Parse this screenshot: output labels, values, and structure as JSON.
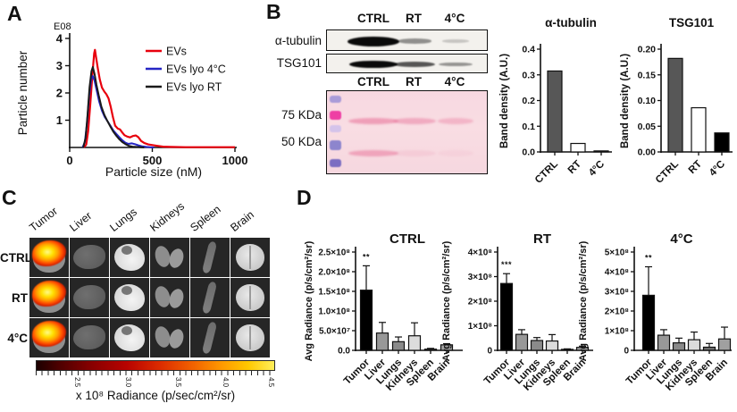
{
  "figure": {
    "panel_a": {
      "label": "A",
      "exponent": "E08",
      "xlabel": "Particle size (nM)",
      "ylabel": "Particle number",
      "legend": [
        {
          "label": "EVs",
          "color": "#e8000d"
        },
        {
          "label": "EVs lyo 4°C",
          "color": "#2525c4"
        },
        {
          "label": "EVs lyo RT",
          "color": "#1a1a1a"
        }
      ]
    },
    "panel_b": {
      "label": "B",
      "lanes": [
        "CTRL",
        "RT",
        "4°C"
      ],
      "blot_rows": [
        {
          "label": "α-tubulin",
          "band_intensities": [
            1.0,
            0.3,
            0.07
          ]
        },
        {
          "label": "TSG101",
          "band_intensities": [
            0.95,
            0.55,
            0.28
          ]
        }
      ],
      "ponceau": {
        "lanes": [
          "CTRL",
          "RT",
          "4°C"
        ],
        "markers": [
          "75 KDa",
          "50 KDa"
        ],
        "smear_rows": [
          {
            "marker": "75 KDa",
            "intensities": [
              0.55,
              0.45,
              0.35
            ]
          },
          {
            "marker": "50 KDa",
            "intensities": [
              0.5,
              0.12,
              0.08
            ]
          }
        ]
      }
    },
    "panel_c": {
      "label": "C",
      "columns": [
        "Tumor",
        "Liver",
        "Lungs",
        "Kidneys",
        "Spleen",
        "Brain"
      ],
      "rows": [
        "CTRL",
        "RT",
        "4°C"
      ],
      "colorbar": {
        "ticks": [
          "2.5",
          "3.0",
          "3.5",
          "4.0",
          "4.5"
        ],
        "label": "x 10⁸ Radiance (p/sec/cm²/sr)"
      }
    },
    "panel_d": {
      "label": "D"
    }
  },
  "chart_data": [
    {
      "panel": "A",
      "type": "line",
      "title": "",
      "xlabel": "Particle size (nM)",
      "ylabel": "Particle number",
      "y_exponent": "E08",
      "xlim": [
        0,
        1000
      ],
      "ylim": [
        0,
        4
      ],
      "xticks": {
        "values": [
          0,
          500,
          1000
        ],
        "labels": [
          "0",
          "500",
          "1000"
        ]
      },
      "yticks": {
        "values": [
          1,
          2,
          3,
          4
        ],
        "labels": [
          "1",
          "2",
          "3",
          "4"
        ]
      },
      "legend_position": "top-right",
      "series": [
        {
          "name": "EVs",
          "color": "#e8000d",
          "points": [
            [
              85,
              0
            ],
            [
              100,
              0.1
            ],
            [
              112,
              0.6
            ],
            [
              125,
              1.6
            ],
            [
              138,
              2.7
            ],
            [
              148,
              3.45
            ],
            [
              153,
              3.58
            ],
            [
              160,
              3.3
            ],
            [
              170,
              2.9
            ],
            [
              182,
              2.5
            ],
            [
              195,
              2.2
            ],
            [
              210,
              2.05
            ],
            [
              222,
              1.95
            ],
            [
              235,
              1.8
            ],
            [
              248,
              1.5
            ],
            [
              262,
              1.1
            ],
            [
              275,
              0.8
            ],
            [
              290,
              0.7
            ],
            [
              305,
              0.66
            ],
            [
              318,
              0.55
            ],
            [
              332,
              0.45
            ],
            [
              348,
              0.4
            ],
            [
              365,
              0.37
            ],
            [
              382,
              0.42
            ],
            [
              400,
              0.44
            ],
            [
              415,
              0.38
            ],
            [
              432,
              0.24
            ],
            [
              452,
              0.16
            ],
            [
              475,
              0.11
            ],
            [
              500,
              0.09
            ],
            [
              530,
              0.06
            ],
            [
              565,
              0.03
            ],
            [
              610,
              0.02
            ],
            [
              700,
              0.01
            ],
            [
              850,
              0.01
            ],
            [
              1000,
              0.01
            ]
          ]
        },
        {
          "name": "EVs lyo 4°C",
          "color": "#2525c4",
          "points": [
            [
              78,
              0
            ],
            [
              92,
              0.2
            ],
            [
              105,
              0.9
            ],
            [
              118,
              1.9
            ],
            [
              130,
              2.5
            ],
            [
              140,
              2.62
            ],
            [
              150,
              2.45
            ],
            [
              163,
              2.1
            ],
            [
              178,
              1.7
            ],
            [
              195,
              1.35
            ],
            [
              212,
              1.12
            ],
            [
              230,
              0.95
            ],
            [
              248,
              0.78
            ],
            [
              265,
              0.62
            ],
            [
              282,
              0.5
            ],
            [
              300,
              0.38
            ],
            [
              318,
              0.27
            ],
            [
              336,
              0.18
            ],
            [
              355,
              0.13
            ],
            [
              375,
              0.15
            ],
            [
              395,
              0.12
            ],
            [
              415,
              0.08
            ],
            [
              440,
              0.04
            ],
            [
              465,
              0.02
            ],
            [
              490,
              0.01
            ],
            [
              510,
              0
            ]
          ]
        },
        {
          "name": "EVs lyo RT",
          "color": "#1a1a1a",
          "points": [
            [
              82,
              0
            ],
            [
              96,
              0.35
            ],
            [
              108,
              1.2
            ],
            [
              120,
              2.2
            ],
            [
              132,
              2.8
            ],
            [
              140,
              2.95
            ],
            [
              150,
              2.7
            ],
            [
              162,
              2.3
            ],
            [
              176,
              1.9
            ],
            [
              192,
              1.5
            ],
            [
              210,
              1.2
            ],
            [
              228,
              0.97
            ],
            [
              246,
              0.77
            ],
            [
              264,
              0.58
            ],
            [
              282,
              0.43
            ],
            [
              300,
              0.3
            ],
            [
              318,
              0.2
            ],
            [
              338,
              0.12
            ],
            [
              358,
              0.06
            ],
            [
              380,
              0.03
            ],
            [
              405,
              0.02
            ],
            [
              430,
              0.01
            ],
            [
              450,
              0
            ]
          ]
        }
      ]
    },
    {
      "panel": "B",
      "type": "bar",
      "title": "α-tubulin",
      "ylabel": "Band density (A.U.)",
      "categories": [
        "CTRL",
        "RT",
        "4°C"
      ],
      "values": [
        0.315,
        0.033,
        0.004
      ],
      "colors": [
        "#575757",
        "#ffffff",
        "#000000"
      ],
      "ylim": [
        0,
        0.4
      ],
      "yticks": {
        "values": [
          0,
          0.1,
          0.2,
          0.3,
          0.4
        ],
        "labels": [
          "0.0",
          "0.1",
          "0.2",
          "0.3",
          "0.4"
        ]
      }
    },
    {
      "panel": "B",
      "type": "bar",
      "title": "TSG101",
      "ylabel": "Band density (A.U.)",
      "categories": [
        "CTRL",
        "RT",
        "4°C"
      ],
      "values": [
        0.182,
        0.086,
        0.037
      ],
      "colors": [
        "#575757",
        "#ffffff",
        "#000000"
      ],
      "ylim": [
        0,
        0.2
      ],
      "yticks": {
        "values": [
          0,
          0.05,
          0.1,
          0.15,
          0.2
        ],
        "labels": [
          "0.00",
          "0.05",
          "0.10",
          "0.15",
          "0.20"
        ]
      }
    },
    {
      "panel": "D",
      "type": "bar",
      "title": "CTRL",
      "ylabel": "Avg Radiance (p/s/cm²/sr)",
      "unit": "×10⁸ p/s/cm²/sr",
      "categories": [
        "Tumor",
        "Liver",
        "Lungs",
        "Kidneys",
        "Spleen",
        "Brain"
      ],
      "values": [
        1.53,
        0.44,
        0.22,
        0.37,
        0.03,
        0.14
      ],
      "errors": [
        0.62,
        0.27,
        0.12,
        0.33,
        0.02,
        0.03
      ],
      "significance": "**",
      "colors": [
        "#000000",
        "#989898",
        "#8a8a8a",
        "#dcdcdc",
        "#707070",
        "#a0a0a0"
      ],
      "ylim": [
        0,
        2.5
      ],
      "yticks": {
        "values": [
          0,
          0.5,
          1,
          1.5,
          2,
          2.5
        ],
        "labels": [
          "0.0",
          "5.0×10⁷",
          "1.0×10⁸",
          "1.5×10⁸",
          "2.0×10⁸",
          "2.5×10⁸"
        ]
      }
    },
    {
      "panel": "D",
      "type": "bar",
      "title": "RT",
      "ylabel": "Avg Radiance (p/s/cm²/sr)",
      "unit": "×10⁸ p/s/cm²/sr",
      "categories": [
        "Tumor",
        "Liver",
        "Lungs",
        "Kidneys",
        "Spleen",
        "Brain"
      ],
      "values": [
        2.72,
        0.65,
        0.4,
        0.38,
        0.04,
        0.12
      ],
      "errors": [
        0.4,
        0.19,
        0.12,
        0.26,
        0.02,
        0.05
      ],
      "significance": "***",
      "colors": [
        "#000000",
        "#989898",
        "#8a8a8a",
        "#dcdcdc",
        "#707070",
        "#a0a0a0"
      ],
      "ylim": [
        0,
        4
      ],
      "yticks": {
        "values": [
          0,
          1,
          2,
          3,
          4
        ],
        "labels": [
          "0",
          "1×10⁸",
          "2×10⁸",
          "3×10⁸",
          "4×10⁸"
        ]
      }
    },
    {
      "panel": "D",
      "type": "bar",
      "title": "4°C",
      "ylabel": "Avg Radiance (p/s/cm²/sr)",
      "unit": "×10⁸ p/s/cm²/sr",
      "categories": [
        "Tumor",
        "Liver",
        "Lungs",
        "Kidneys",
        "Spleen",
        "Brain"
      ],
      "values": [
        2.8,
        0.77,
        0.38,
        0.54,
        0.16,
        0.58
      ],
      "errors": [
        1.45,
        0.28,
        0.24,
        0.39,
        0.19,
        0.6
      ],
      "significance": "**",
      "colors": [
        "#000000",
        "#989898",
        "#8a8a8a",
        "#dcdcdc",
        "#707070",
        "#a0a0a0"
      ],
      "ylim": [
        0,
        5
      ],
      "yticks": {
        "values": [
          0,
          1,
          2,
          3,
          4,
          5
        ],
        "labels": [
          "0",
          "1×10⁸",
          "2×10⁸",
          "3×10⁸",
          "4×10⁸",
          "5×10⁸"
        ]
      }
    }
  ]
}
